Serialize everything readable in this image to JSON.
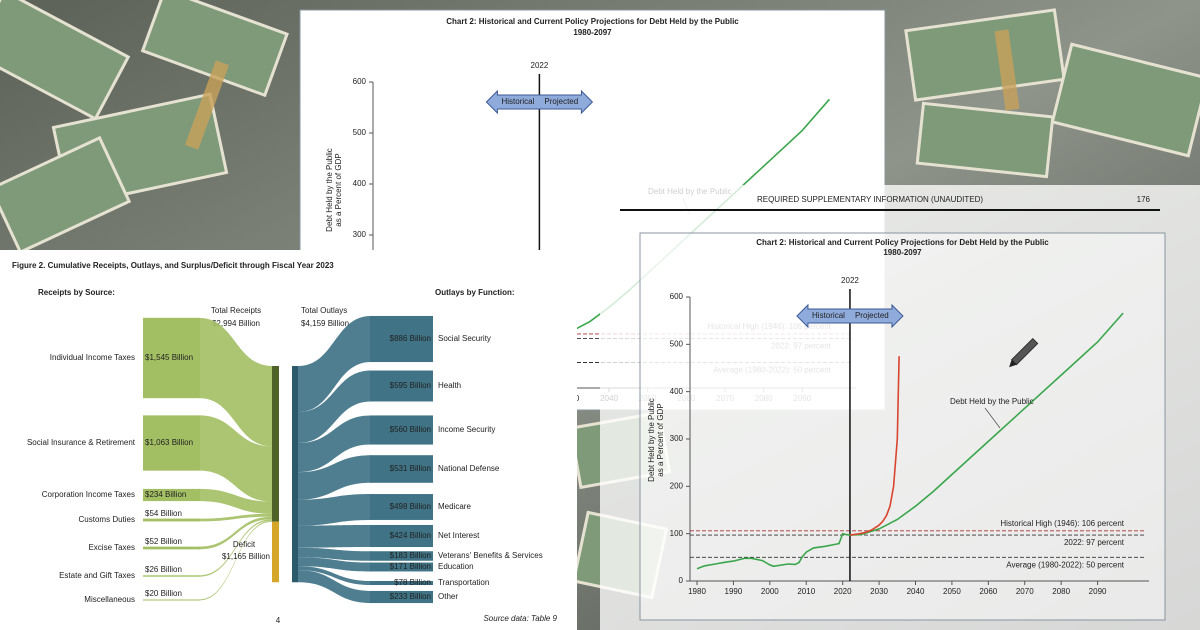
{
  "chart_data": [
    {
      "type": "line",
      "title": "Chart 2:  Historical and Current Policy Projections for Debt Held by the Public",
      "subtitle": "1980-2097",
      "ylabel": [
        "Debt Held by the Public",
        "as a Percent of GDP"
      ],
      "xlim": [
        1980,
        2100
      ],
      "xticks": [
        1980,
        1990,
        2000,
        2010,
        2020,
        2030,
        2040,
        2050,
        2060,
        2070,
        2080,
        2090
      ],
      "ylim": [
        0,
        600
      ],
      "yticks": [
        0,
        100,
        200,
        300,
        400,
        500,
        600
      ],
      "event": {
        "x": 2022,
        "left_label": "Historical",
        "right_label": "Projected"
      },
      "reference_lines": [
        {
          "value": 106,
          "label": "Historical High (1946): 106 percent"
        },
        {
          "value": 97,
          "label": "2022: 97 percent"
        },
        {
          "value": 50,
          "label": "Average (1980-2022): 50 percent"
        }
      ],
      "annotation": "Debt Held by the Public",
      "series": [
        {
          "name": "Debt Held by the Public",
          "color": "#3aa64c",
          "x": [
            1980,
            1982,
            1985,
            1988,
            1990,
            1993,
            1995,
            1998,
            2000,
            2001,
            2005,
            2007,
            2008,
            2009,
            2010,
            2012,
            2015,
            2019,
            2020,
            2021,
            2022,
            2025,
            2030,
            2035,
            2040,
            2045,
            2050,
            2060,
            2070,
            2080,
            2090,
            2097
          ],
          "values": [
            26,
            32,
            36,
            40,
            42,
            48,
            48,
            43,
            34,
            31,
            36,
            35,
            39,
            52,
            61,
            70,
            73,
            79,
            100,
            98,
            97,
            98,
            110,
            130,
            158,
            190,
            225,
            295,
            365,
            435,
            505,
            566
          ]
        }
      ]
    },
    {
      "type": "sankey",
      "title": "Figure 2. Cumulative Receipts, Outlays, and Surplus/Deficit through Fiscal Year 2023",
      "receipts_heading": "Receipts by Source:",
      "outlays_heading": "Outlays by Function:",
      "total_receipts_label": "Total Receipts",
      "total_receipts": 2994,
      "total_receipts_value_label": "$2,994 Billion",
      "total_outlays_label": "Total Outlays",
      "total_outlays": 4159,
      "total_outlays_value_label": "$4,159 Billion",
      "deficit_label": "Deficit",
      "deficit": 1165,
      "deficit_value_label": "$1,165 Billion",
      "receipts_color": "#a3bf63",
      "total_receipts_color": "#4f6228",
      "deficit_color": "#d6a62a",
      "outlays_color": "#3f7385",
      "receipts": {
        "categories": [
          "Individual Income Taxes",
          "Social Insurance & Retirement",
          "Corporation Income Taxes",
          "Customs Duties",
          "Excise Taxes",
          "Estate and Gift Taxes",
          "Miscellaneous"
        ],
        "values": [
          1545,
          1063,
          234,
          54,
          52,
          26,
          20
        ],
        "value_labels": [
          "$1,545 Billion",
          "$1,063 Billion",
          "$234 Billion",
          "$54 Billion",
          "$52 Billion",
          "$26 Billion",
          "$20 Billion"
        ]
      },
      "outlays": {
        "categories": [
          "Social Security",
          "Health",
          "Income Security",
          "National Defense",
          "Medicare",
          "Net Interest",
          "Veterans' Benefits & Services",
          "Education",
          "Transportation",
          "Other"
        ],
        "values": [
          886,
          595,
          560,
          531,
          498,
          424,
          183,
          171,
          78,
          233
        ],
        "value_labels": [
          "$886 Billion",
          "$595 Billion",
          "$560 Billion",
          "$531 Billion",
          "$498 Billion",
          "$424 Billion",
          "$183 Billion",
          "$171 Billion",
          "$78 Billion",
          "$233 Billion"
        ]
      },
      "source": "Source data: Table 9",
      "page_number": 4
    },
    {
      "type": "line",
      "page_header": "REQUIRED SUPPLEMENTARY INFORMATION (UNAUDITED)",
      "page_number": 176,
      "title": "Chart 2:  Historical and Current Policy Projections for Debt Held by the Public",
      "subtitle": "1980-2097",
      "ylabel": [
        "Debt Held by the Public",
        "as a Percent of GDP"
      ],
      "xlim": [
        1980,
        2100
      ],
      "xticks": [
        1980,
        1990,
        2000,
        2010,
        2020,
        2030,
        2040,
        2050,
        2060,
        2070,
        2080,
        2090
      ],
      "ylim": [
        0,
        600
      ],
      "yticks": [
        0,
        100,
        200,
        300,
        400,
        500,
        600
      ],
      "event": {
        "x": 2022,
        "left_label": "Historical",
        "right_label": "Projected"
      },
      "reference_lines": [
        {
          "value": 106,
          "label": "Historical High (1946): 106 percent"
        },
        {
          "value": 97,
          "label": "2022: 97 percent"
        },
        {
          "value": 50,
          "label": "Average (1980-2022): 50 percent"
        }
      ],
      "annotation": "Debt Held by the Public",
      "series": [
        {
          "name": "Debt Held by the Public",
          "color": "#3aa64c",
          "x": [
            1980,
            1982,
            1985,
            1988,
            1990,
            1993,
            1995,
            1998,
            2000,
            2001,
            2005,
            2007,
            2008,
            2009,
            2010,
            2012,
            2015,
            2019,
            2020,
            2021,
            2022,
            2025,
            2030,
            2035,
            2040,
            2045,
            2050,
            2060,
            2070,
            2080,
            2090,
            2097
          ],
          "values": [
            26,
            32,
            36,
            40,
            42,
            48,
            48,
            43,
            34,
            31,
            36,
            35,
            39,
            52,
            61,
            70,
            73,
            79,
            100,
            98,
            97,
            98,
            110,
            130,
            158,
            190,
            225,
            295,
            365,
            435,
            505,
            566
          ]
        },
        {
          "color": "#d9452e",
          "x": [
            2022,
            2024,
            2026,
            2028,
            2030,
            2031,
            2032,
            2033,
            2034,
            2035,
            2035.5
          ],
          "values": [
            97,
            99,
            102,
            108,
            118,
            126,
            138,
            158,
            200,
            300,
            475
          ]
        }
      ]
    }
  ]
}
